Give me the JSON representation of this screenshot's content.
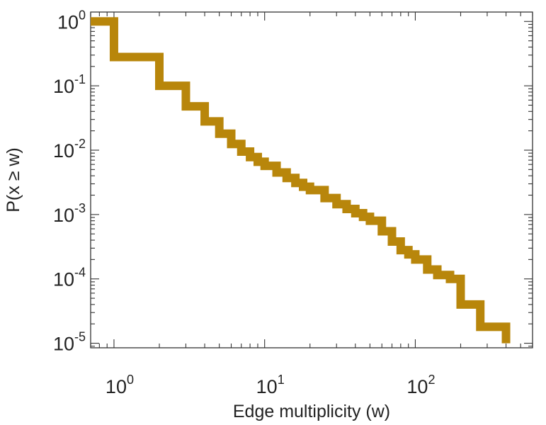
{
  "chart_data": {
    "type": "line",
    "title": "",
    "xlabel": "Edge multiplicity (w)",
    "ylabel": "P(x ≥ w)",
    "xscale": "log",
    "yscale": "log",
    "xlim": [
      0.7,
      600
    ],
    "ylim": [
      8.5e-06,
      1.4
    ],
    "grid": false,
    "legend": "none",
    "x_ticks": [
      {
        "base": "10",
        "exp": "0"
      },
      {
        "base": "10",
        "exp": "1"
      },
      {
        "base": "10",
        "exp": "2"
      }
    ],
    "y_ticks": [
      {
        "base": "10",
        "exp": "0"
      },
      {
        "base": "10",
        "exp": "-1"
      },
      {
        "base": "10",
        "exp": "-2"
      },
      {
        "base": "10",
        "exp": "-3"
      },
      {
        "base": "10",
        "exp": "-4"
      },
      {
        "base": "10",
        "exp": "-5"
      }
    ],
    "series": [
      {
        "name": "P(x ≥ w)",
        "color": "#b8860b",
        "style": "step",
        "x": [
          0.7,
          1,
          2,
          3,
          4,
          5,
          6,
          7,
          8,
          9,
          10,
          12,
          14,
          16,
          18,
          20,
          25,
          30,
          35,
          40,
          45,
          50,
          60,
          70,
          80,
          90,
          100,
          120,
          140,
          170,
          200,
          270,
          400
        ],
        "y": [
          1.0,
          0.28,
          0.1,
          0.048,
          0.028,
          0.018,
          0.0125,
          0.0095,
          0.0078,
          0.0066,
          0.0057,
          0.0045,
          0.0037,
          0.0031,
          0.0027,
          0.0024,
          0.0018,
          0.00145,
          0.00122,
          0.00105,
          0.00092,
          0.0008,
          0.00055,
          0.00038,
          0.00028,
          0.00024,
          0.0002,
          0.00014,
          0.000115,
          0.0001,
          4e-05,
          1.8e-05,
          1e-05
        ]
      }
    ]
  }
}
